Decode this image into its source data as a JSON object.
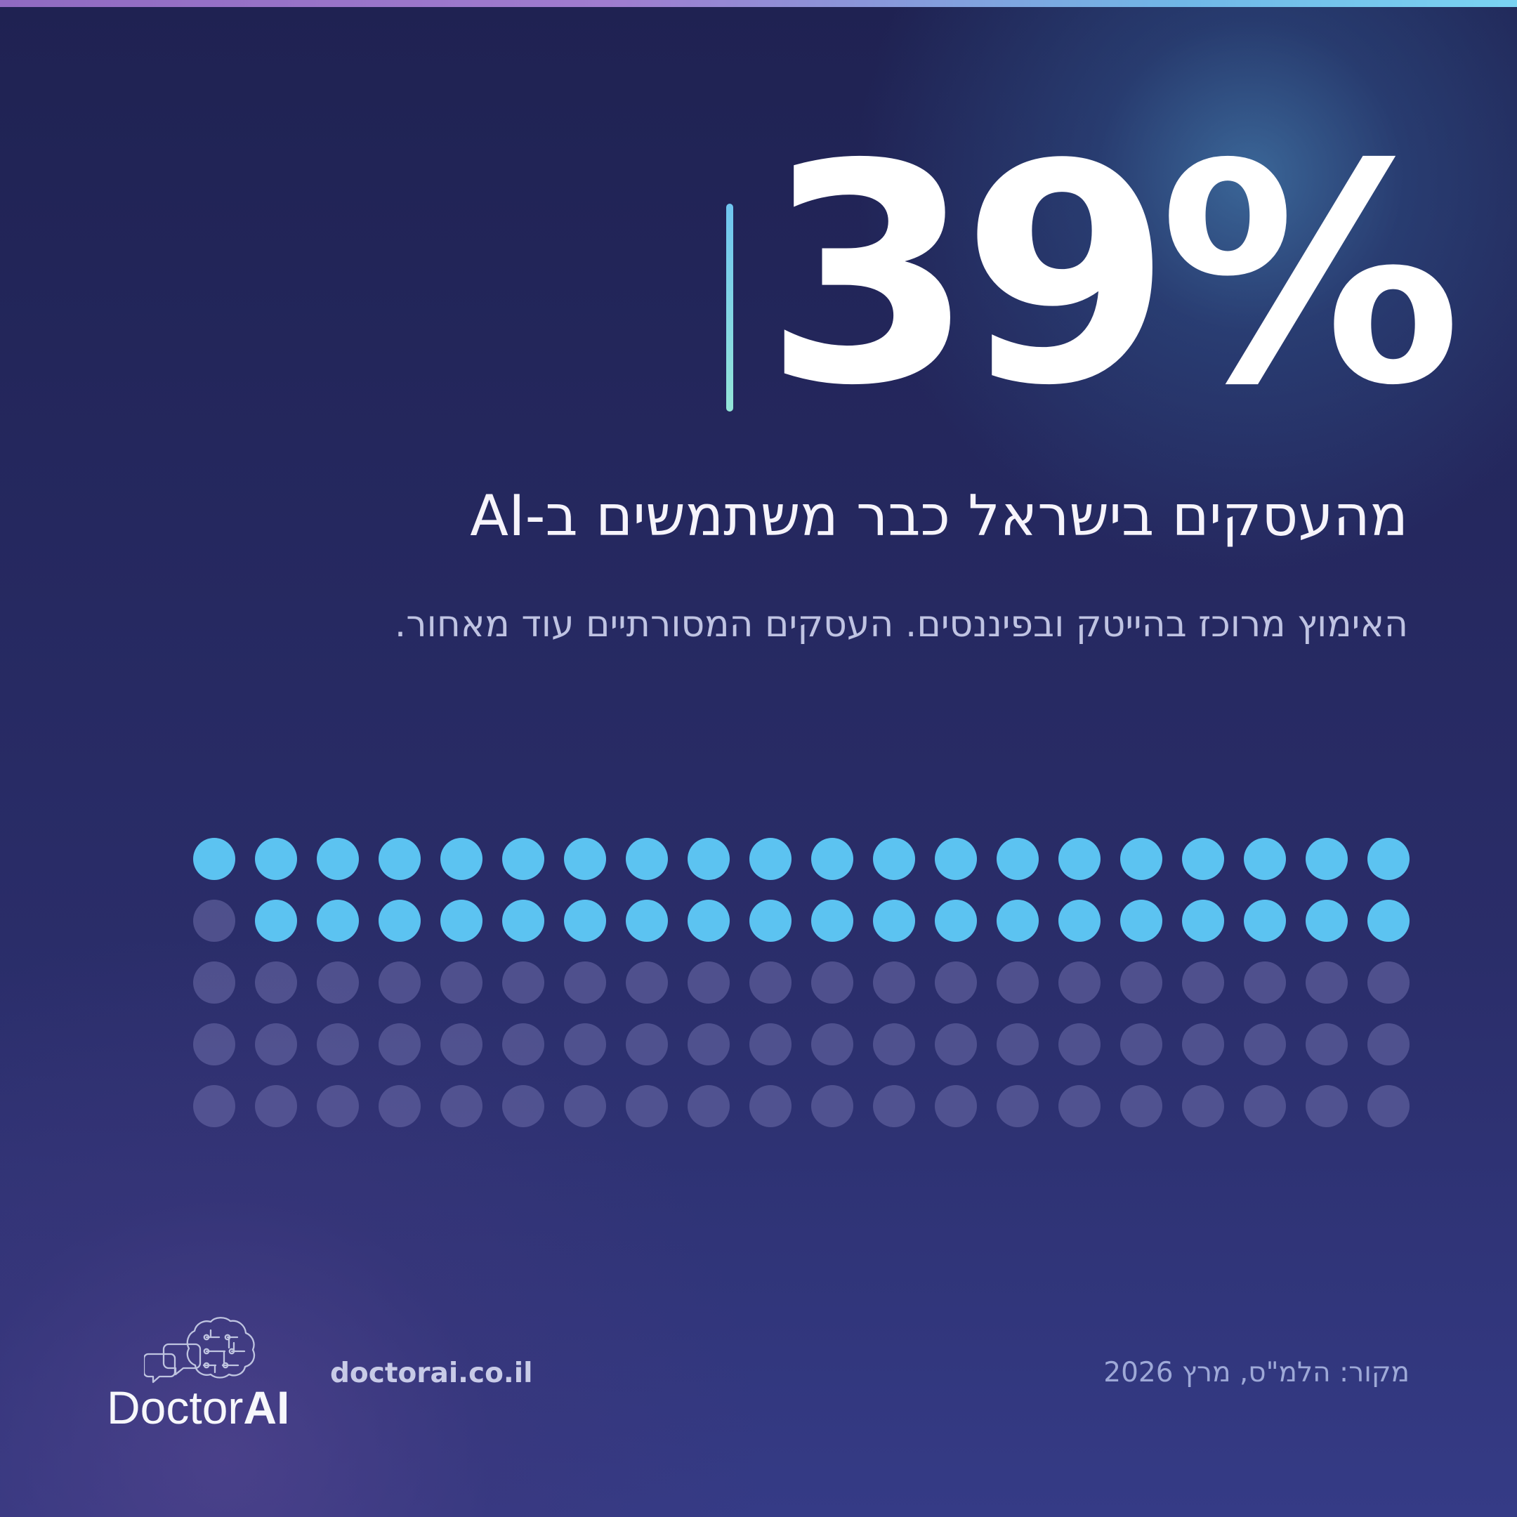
{
  "hero": {
    "stat_value": "39%",
    "headline": "מהעסקים בישראל כבר משתמשים ב-AI",
    "subtext": "האימוץ מרוכז בהייטק ובפיננסים. העסקים המסורתיים עוד מאחור."
  },
  "dot_chart": {
    "total_dots": 100,
    "filled_dots": 39,
    "filled_color": "#5cc3f1",
    "empty_color": "#6d6eaa"
  },
  "footer": {
    "brand_light": "Doctor",
    "brand_strong": "AI",
    "website": "doctorai.co.il",
    "source": "מקור: הלמ\"ס, מרץ 2026"
  },
  "icons": {
    "logo_icon": "brain-chat-icon"
  }
}
